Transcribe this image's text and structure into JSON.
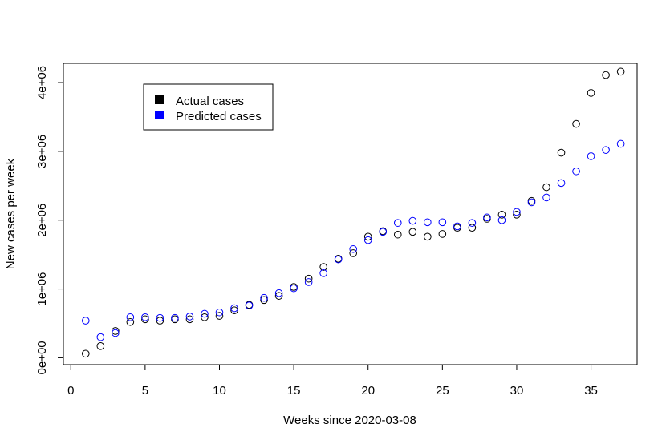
{
  "chart_data": {
    "type": "scatter",
    "xlabel": "Weeks since 2020-03-08",
    "ylabel": "New cases per week",
    "xlim": [
      -0.5,
      38.1
    ],
    "ylim": [
      -100000,
      4280000
    ],
    "xticks": [
      0,
      5,
      10,
      15,
      20,
      25,
      30,
      35
    ],
    "yticks": [
      0,
      1000000,
      2000000,
      3000000,
      4000000
    ],
    "ytick_labels": [
      "0e+00",
      "1e+06",
      "2e+06",
      "3e+06",
      "4e+06"
    ],
    "legend_position": "top-left",
    "x": [
      1,
      2,
      3,
      4,
      5,
      6,
      7,
      8,
      9,
      10,
      11,
      12,
      13,
      14,
      15,
      16,
      17,
      18,
      19,
      20,
      21,
      22,
      23,
      24,
      25,
      26,
      27,
      28,
      29,
      30,
      31,
      32,
      33,
      34,
      35,
      36,
      37
    ],
    "series": [
      {
        "name": "Actual cases",
        "color": "#000000",
        "values": [
          60000,
          170000,
          390000,
          520000,
          560000,
          540000,
          560000,
          560000,
          590000,
          610000,
          690000,
          770000,
          840000,
          900000,
          1030000,
          1150000,
          1320000,
          1440000,
          1520000,
          1760000,
          1840000,
          1790000,
          1830000,
          1760000,
          1800000,
          1890000,
          1890000,
          2020000,
          2080000,
          2080000,
          2280000,
          2480000,
          2980000,
          3400000,
          3850000,
          4110000,
          4160000
        ]
      },
      {
        "name": "Predicted cases",
        "color": "#0000ff",
        "values": [
          540000,
          300000,
          360000,
          590000,
          590000,
          580000,
          580000,
          600000,
          640000,
          660000,
          720000,
          760000,
          870000,
          940000,
          1010000,
          1100000,
          1230000,
          1430000,
          1580000,
          1710000,
          1830000,
          1960000,
          1990000,
          1970000,
          1970000,
          1910000,
          1960000,
          2040000,
          2000000,
          2120000,
          2260000,
          2330000,
          2540000,
          2710000,
          2930000,
          3020000,
          3110000
        ]
      }
    ]
  }
}
